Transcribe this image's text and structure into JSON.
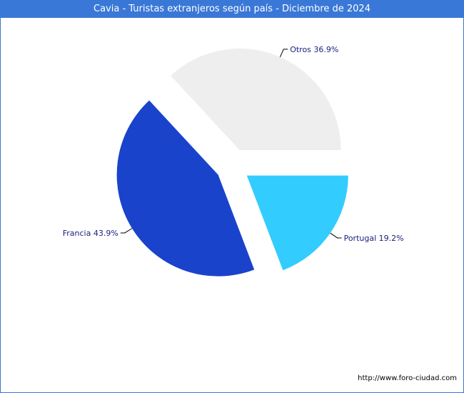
{
  "header": {
    "title": "Cavia - Turistas extranjeros según país - Diciembre de 2024"
  },
  "footer": {
    "source": "http://www.foro-ciudad.com"
  },
  "chart_data": {
    "type": "pie",
    "title": "Cavia - Turistas extranjeros según país - Diciembre de 2024",
    "start_angle_deg": 0,
    "direction": "clockwise",
    "exploded": true,
    "slices": [
      {
        "name": "Portugal",
        "value": 19.2,
        "label": "Portugal 19.2%",
        "color": "#33ccff"
      },
      {
        "name": "Francia",
        "value": 43.9,
        "label": "Francia 43.9%",
        "color": "#1a43cc"
      },
      {
        "name": "Otros",
        "value": 36.9,
        "label": "Otros 36.9%",
        "color": "#eeeeee"
      }
    ]
  }
}
